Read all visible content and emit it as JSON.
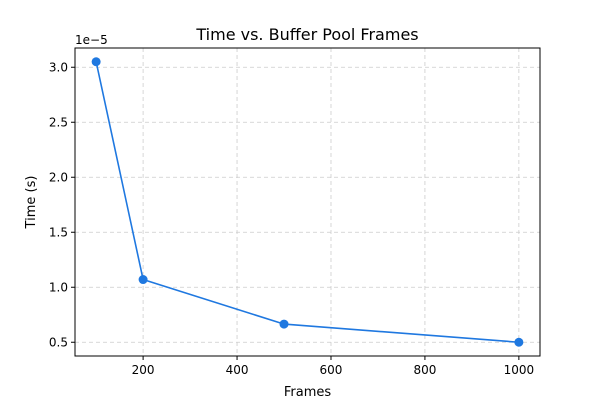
{
  "chart_data": {
    "type": "line",
    "title": "Time vs. Buffer Pool Frames",
    "xlabel": "Frames",
    "ylabel": "Time (s)",
    "y_offset_label": "1e−5",
    "x": [
      100,
      200,
      500,
      1000
    ],
    "series": [
      {
        "values": [
          3.05e-05,
          1.07e-05,
          6.65e-06,
          5e-06
        ],
        "color": "#1f78e0"
      }
    ],
    "xlim": [
      55,
      1045
    ],
    "ylim": [
      3.75e-06,
      3.175e-05
    ],
    "x_ticks": [
      200,
      400,
      600,
      800,
      1000
    ],
    "x_tick_labels": [
      "200",
      "400",
      "600",
      "800",
      "1000"
    ],
    "y_ticks": [
      5e-06,
      1e-05,
      1.5e-05,
      2e-05,
      2.5e-05,
      3e-05
    ],
    "y_tick_labels": [
      "0.5",
      "1.0",
      "1.5",
      "2.0",
      "2.5",
      "3.0"
    ],
    "grid": true,
    "grid_color": "#cccccc",
    "axis_color": "#000000"
  }
}
